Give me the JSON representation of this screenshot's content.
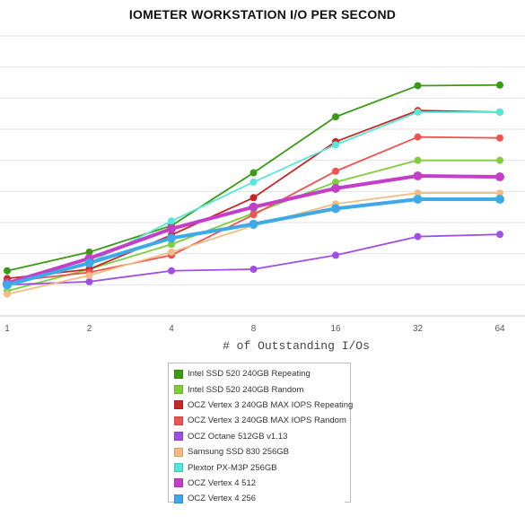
{
  "chart_data": {
    "type": "line",
    "title": "IOMETER WORKSTATION I/O PER SECOND",
    "xlabel": "# of Outstanding I/Os",
    "ylabel": "",
    "x_scale": "log2",
    "categories": [
      "1",
      "2",
      "4",
      "8",
      "16",
      "32",
      "64"
    ],
    "ylim": [
      0,
      9
    ],
    "grid": true,
    "legend_position": "bottom-center",
    "series": [
      {
        "name": "Intel SSD 520 240GB Repeating",
        "color": "#3a9a14",
        "values": [
          1.45,
          2.05,
          2.9,
          4.6,
          6.4,
          7.4,
          7.42
        ]
      },
      {
        "name": "Intel SSD 520 240GB Random",
        "color": "#7fce3e",
        "values": [
          0.8,
          1.5,
          2.3,
          3.3,
          4.3,
          5.0,
          5.0
        ]
      },
      {
        "name": "OCZ Vertex 3 240GB MAX IOPS Repeating",
        "color": "#c62828",
        "values": [
          1.2,
          1.5,
          2.6,
          3.8,
          5.6,
          6.6,
          6.55
        ]
      },
      {
        "name": "OCZ Vertex 3 240GB MAX IOPS Random",
        "color": "#ef5350",
        "values": [
          1.1,
          1.4,
          1.95,
          3.25,
          4.65,
          5.75,
          5.72
        ]
      },
      {
        "name": "OCZ Octane 512GB v1.13",
        "color": "#a04ee6",
        "values": [
          1.0,
          1.1,
          1.45,
          1.5,
          1.95,
          2.55,
          2.62
        ]
      },
      {
        "name": "Samsung SSD 830 256GB",
        "color": "#f0be84",
        "values": [
          0.7,
          1.3,
          2.05,
          2.9,
          3.6,
          3.95,
          3.95
        ]
      },
      {
        "name": "Plextor PX-M3P 256GB",
        "color": "#58e6d8",
        "values": [
          0.95,
          1.7,
          3.05,
          4.3,
          5.5,
          6.55,
          6.55
        ]
      },
      {
        "name": "OCZ Vertex 4 512",
        "color": "#c33fc8",
        "values": [
          1.05,
          1.85,
          2.8,
          3.5,
          4.1,
          4.5,
          4.47
        ]
      },
      {
        "name": "OCZ Vertex 4 256",
        "color": "#3fa9e8",
        "values": [
          1.0,
          1.7,
          2.5,
          2.95,
          3.45,
          3.75,
          3.75
        ]
      }
    ]
  },
  "legend": {
    "selected_index": 8
  }
}
